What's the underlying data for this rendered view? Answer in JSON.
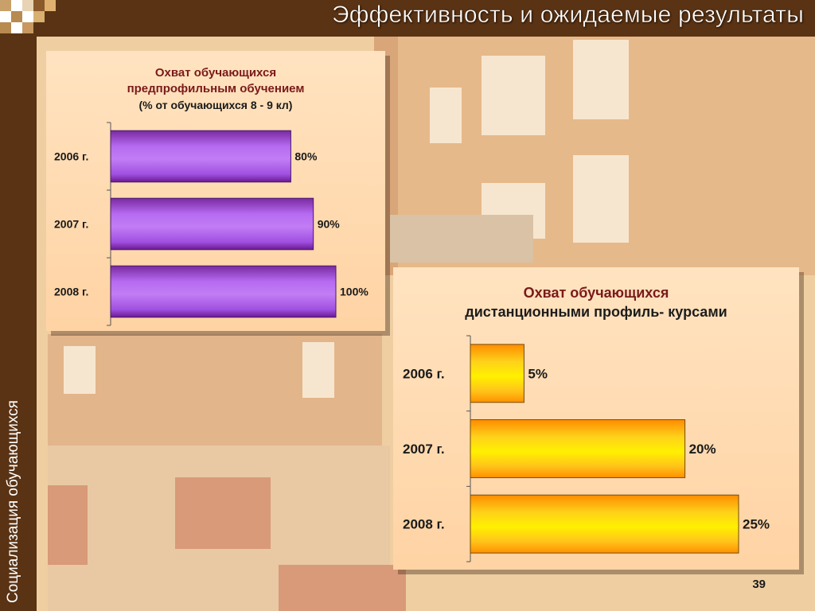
{
  "slide": {
    "title": "Эффективность и ожидаемые результаты",
    "side_text": "Социализация обучающихся",
    "page_number": "39"
  },
  "colors": {
    "frame_brown": "#5a3314",
    "panel_bg": "#ffd9ad",
    "purple_bar": "#a64fe0",
    "orange_bar": "#ffc21a",
    "title_red": "#7a1a1a"
  },
  "chart_data": [
    {
      "type": "bar",
      "orientation": "horizontal",
      "title": [
        "Охват обучающихся",
        "предпрофильным обучением",
        "(% от обучающихся 8 - 9 кл)"
      ],
      "categories": [
        "2006 г.",
        "2007 г.",
        "2008 г."
      ],
      "values": [
        80,
        90,
        100
      ],
      "value_labels": [
        "80%",
        "90%",
        "100%"
      ],
      "xlim": [
        0,
        100
      ],
      "grid": false,
      "legend": "none"
    },
    {
      "type": "bar",
      "orientation": "horizontal",
      "title": [
        "Охват обучающихся",
        "дистанционными профиль- курсами"
      ],
      "categories": [
        "2006 г.",
        "2007 г.",
        "2008 г."
      ],
      "values": [
        5,
        20,
        25
      ],
      "value_labels": [
        "5%",
        "20%",
        "25%"
      ],
      "xlim": [
        0,
        25
      ],
      "grid": false,
      "legend": "none"
    }
  ]
}
